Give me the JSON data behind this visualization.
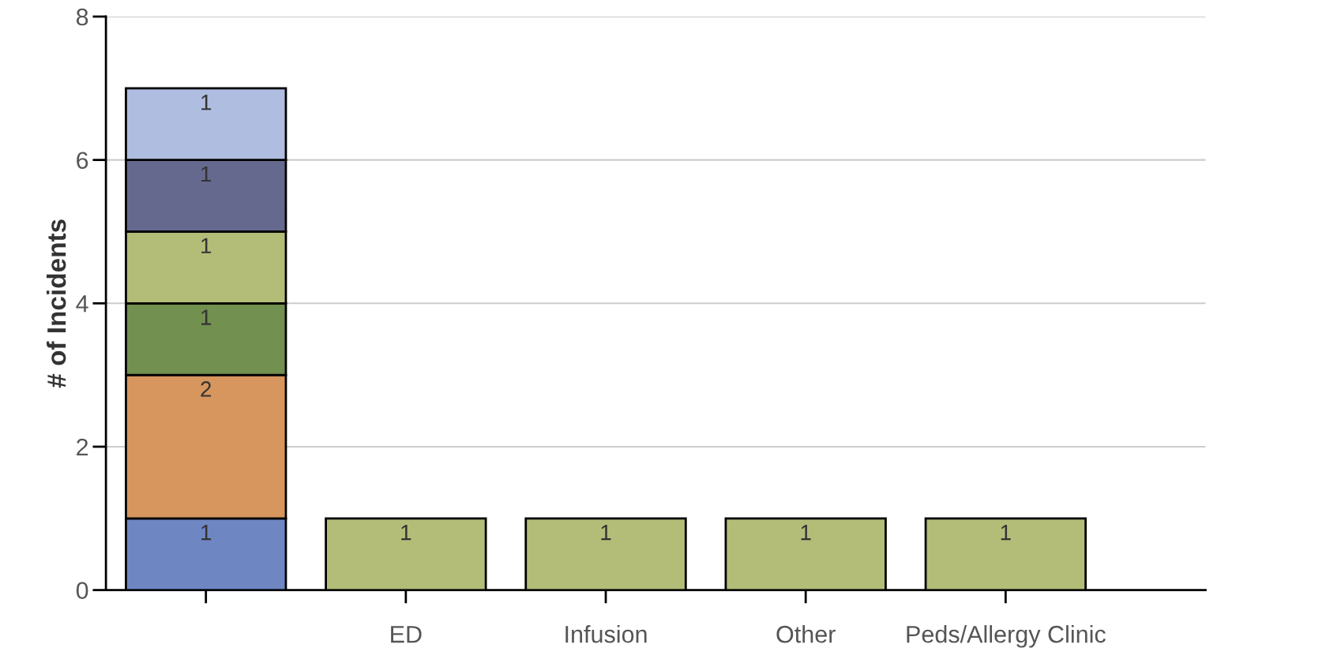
{
  "chart_data": {
    "type": "bar",
    "stacked": true,
    "ylabel": "# of Incidents",
    "categories": [
      null,
      "ED",
      "Infusion",
      "Other",
      "Peds/Allergy Clinic"
    ],
    "series": [
      {
        "color": "#6e87c3",
        "values": [
          1,
          null,
          null,
          null,
          null
        ]
      },
      {
        "color": "#d6965e",
        "values": [
          2,
          null,
          null,
          null,
          null
        ]
      },
      {
        "color": "#72904f",
        "values": [
          1,
          null,
          null,
          null,
          null
        ]
      },
      {
        "color": "#b3bd78",
        "values": [
          1,
          1,
          1,
          1,
          1
        ]
      },
      {
        "color": "#66698e",
        "values": [
          1,
          null,
          null,
          null,
          null
        ]
      },
      {
        "color": "#afbde1",
        "values": [
          1,
          null,
          null,
          null,
          null
        ]
      }
    ],
    "ylim": [
      0,
      8
    ],
    "yticks": [
      0,
      2,
      4,
      6,
      8
    ],
    "grid": "y",
    "data_labels": true,
    "legend": false
  }
}
